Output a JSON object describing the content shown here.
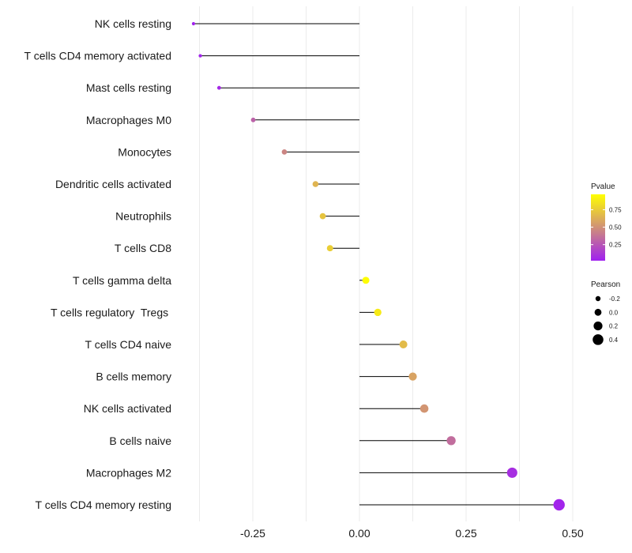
{
  "chart_data": {
    "type": "lollipop",
    "title": "",
    "xlabel": "",
    "ylabel": "",
    "xlim": [
      -0.43,
      0.53
    ],
    "x_ticks": [
      -0.25,
      0.0,
      0.25,
      0.5
    ],
    "x_tick_labels": [
      "-0.25",
      "0.00",
      "0.25",
      "0.50"
    ],
    "grid": true,
    "categories": [
      "NK cells resting",
      "T cells CD4 memory activated",
      "Mast cells resting",
      "Macrophages M0",
      "Monocytes",
      "Dendritic cells activated",
      "Neutrophils",
      "T cells CD8",
      "T cells gamma delta",
      "T cells regulatory  Tregs ",
      "T cells CD4 naive",
      "B cells memory",
      "NK cells activated",
      "B cells naive",
      "Macrophages M2",
      "T cells CD4 memory resting"
    ],
    "pearson": [
      -0.389,
      -0.373,
      -0.329,
      -0.249,
      -0.176,
      -0.103,
      -0.086,
      -0.069,
      0.015,
      0.043,
      0.103,
      0.125,
      0.152,
      0.215,
      0.358,
      0.468
    ],
    "pvalue": [
      0.03,
      0.04,
      0.06,
      0.3,
      0.45,
      0.65,
      0.72,
      0.76,
      0.96,
      0.88,
      0.68,
      0.58,
      0.52,
      0.35,
      0.08,
      0.04
    ],
    "colorbar": {
      "title": "Pvalue",
      "low_color": "#A020F0",
      "high_color": "#FFFF00",
      "range": [
        0.02,
        0.97
      ],
      "ticks": [
        0.25,
        0.5,
        0.75
      ],
      "tick_labels": [
        "0.25",
        "0.50",
        "0.75"
      ]
    },
    "size_legend": {
      "title": "Pearson",
      "values": [
        -0.2,
        0.0,
        0.2,
        0.4
      ],
      "labels": [
        "-0.2",
        "0.0",
        "0.2",
        "0.4"
      ]
    },
    "colors": {
      "segment": "#000000",
      "grid": "#ebebeb"
    }
  }
}
